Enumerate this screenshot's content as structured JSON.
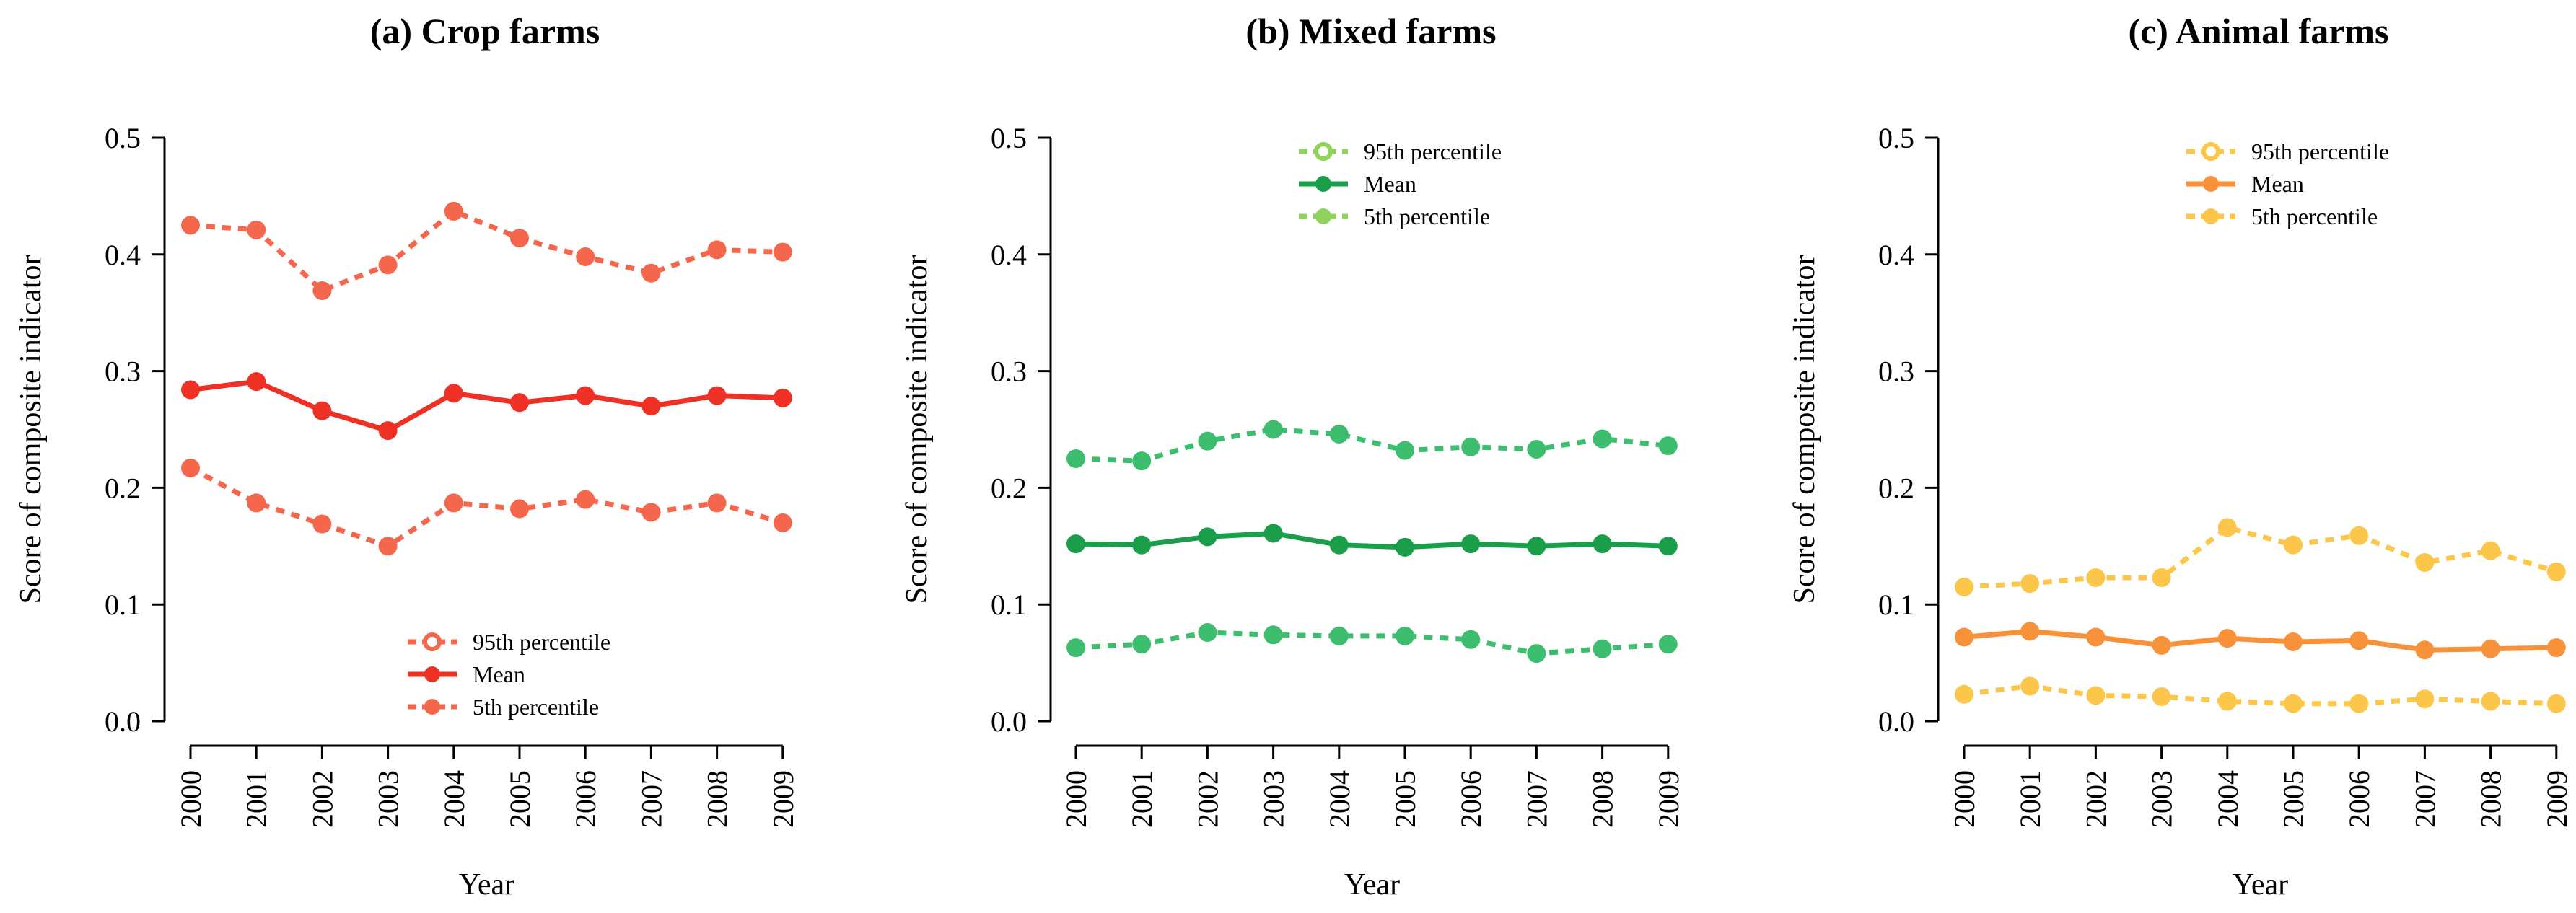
{
  "chart_data": [
    {
      "type": "line",
      "title": "(a) Crop farms",
      "xlabel": "Year",
      "ylabel": "Score of composite indicator",
      "ylim": [
        0,
        0.5
      ],
      "yticks": [
        "0.0",
        "0.1",
        "0.2",
        "0.3",
        "0.4",
        "0.5"
      ],
      "x": [
        "2000",
        "2001",
        "2002",
        "2003",
        "2004",
        "2005",
        "2006",
        "2007",
        "2008",
        "2009"
      ],
      "legend_position": "bottom-right",
      "series": [
        {
          "name": "95th percentile",
          "style": "dotted",
          "color": "#f4674c",
          "values": [
            0.425,
            0.421,
            0.369,
            0.391,
            0.437,
            0.414,
            0.398,
            0.384,
            0.404,
            0.402
          ]
        },
        {
          "name": "Mean",
          "style": "solid",
          "color": "#ee3124",
          "values": [
            0.284,
            0.291,
            0.266,
            0.249,
            0.281,
            0.273,
            0.279,
            0.27,
            0.279,
            0.277
          ]
        },
        {
          "name": "5th percentile",
          "style": "dotted",
          "color": "#f4674c",
          "values": [
            0.217,
            0.187,
            0.169,
            0.15,
            0.187,
            0.182,
            0.19,
            0.179,
            0.187,
            0.17
          ]
        }
      ]
    },
    {
      "type": "line",
      "title": "(b) Mixed farms",
      "xlabel": "Year",
      "ylabel": "Score of composite indicator",
      "ylim": [
        0,
        0.5
      ],
      "yticks": [
        "0.0",
        "0.1",
        "0.2",
        "0.3",
        "0.4",
        "0.5"
      ],
      "x": [
        "2000",
        "2001",
        "2002",
        "2003",
        "2004",
        "2005",
        "2006",
        "2007",
        "2008",
        "2009"
      ],
      "legend_position": "top-right",
      "series": [
        {
          "name": "95th percentile",
          "style": "dotted",
          "color": "#3dbe6e",
          "legend_color": "#8fd35c",
          "values": [
            0.225,
            0.223,
            0.24,
            0.25,
            0.246,
            0.232,
            0.235,
            0.233,
            0.242,
            0.236
          ]
        },
        {
          "name": "Mean",
          "style": "solid",
          "color": "#1a9e4a",
          "values": [
            0.152,
            0.151,
            0.158,
            0.161,
            0.151,
            0.149,
            0.152,
            0.15,
            0.152,
            0.15
          ]
        },
        {
          "name": "5th percentile",
          "style": "dotted",
          "color": "#3dbe6e",
          "legend_color": "#8fd35c",
          "values": [
            0.063,
            0.066,
            0.076,
            0.074,
            0.073,
            0.073,
            0.07,
            0.058,
            0.062,
            0.066
          ]
        }
      ]
    },
    {
      "type": "line",
      "title": "(c) Animal farms",
      "xlabel": "Year",
      "ylabel": "Score of composite indicator",
      "ylim": [
        0,
        0.5
      ],
      "yticks": [
        "0.0",
        "0.1",
        "0.2",
        "0.3",
        "0.4",
        "0.5"
      ],
      "x": [
        "2000",
        "2001",
        "2002",
        "2003",
        "2004",
        "2005",
        "2006",
        "2007",
        "2008",
        "2009"
      ],
      "legend_position": "top-right",
      "series": [
        {
          "name": "95th percentile",
          "style": "dotted",
          "color": "#fcc64b",
          "values": [
            0.115,
            0.118,
            0.123,
            0.123,
            0.166,
            0.151,
            0.159,
            0.136,
            0.146,
            0.128
          ]
        },
        {
          "name": "Mean",
          "style": "solid",
          "color": "#f7913a",
          "values": [
            0.072,
            0.077,
            0.072,
            0.065,
            0.071,
            0.068,
            0.069,
            0.061,
            0.062,
            0.063
          ]
        },
        {
          "name": "5th percentile",
          "style": "dotted",
          "color": "#fcc64b",
          "values": [
            0.023,
            0.03,
            0.022,
            0.021,
            0.017,
            0.015,
            0.015,
            0.019,
            0.017,
            0.015
          ]
        }
      ]
    }
  ]
}
